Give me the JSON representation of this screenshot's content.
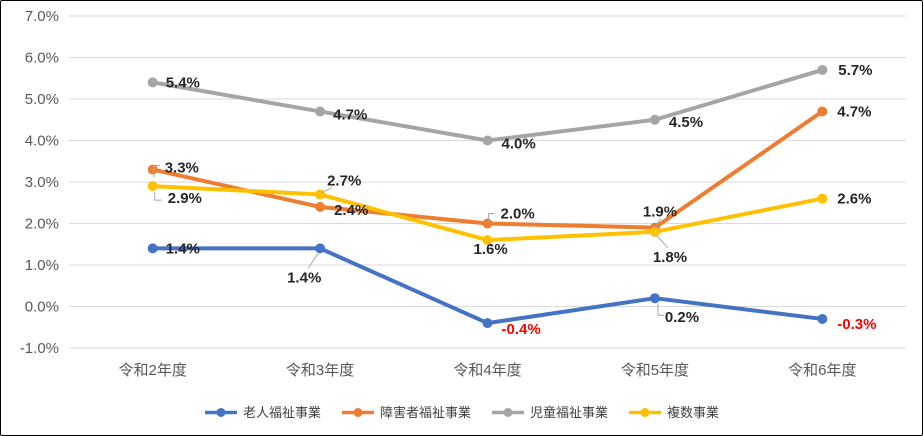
{
  "chart_data": {
    "type": "line",
    "title": "",
    "xlabel": "",
    "ylabel": "",
    "categories": [
      "令和2年度",
      "令和3年度",
      "令和4年度",
      "令和5年度",
      "令和6年度"
    ],
    "series": [
      {
        "name": "老人福祉事業",
        "color": "#4472C4",
        "values": [
          1.4,
          1.4,
          -0.4,
          0.2,
          -0.3
        ],
        "point_labels": [
          "1.4%",
          "1.4%",
          "-0.4%",
          "0.2%",
          "-0.3%"
        ]
      },
      {
        "name": "障害者福祉事業",
        "color": "#ED7D31",
        "values": [
          3.3,
          2.4,
          2.0,
          1.9,
          4.7
        ],
        "point_labels": [
          "3.3%",
          "2.4%",
          "2.0%",
          "1.9%",
          "4.7%"
        ]
      },
      {
        "name": "児童福祉事業",
        "color": "#A5A5A5",
        "values": [
          5.4,
          4.7,
          4.0,
          4.5,
          5.7
        ],
        "point_labels": [
          "5.4%",
          "4.7%",
          "4.0%",
          "4.5%",
          "5.7%"
        ]
      },
      {
        "name": "複数事業",
        "color": "#FFC000",
        "values": [
          2.9,
          2.7,
          1.6,
          1.8,
          2.6
        ],
        "point_labels": [
          "2.9%",
          "2.7%",
          "1.6%",
          "1.8%",
          "2.6%"
        ]
      }
    ],
    "ylim": [
      -1.0,
      7.0
    ],
    "ytick_step": 1.0,
    "ytick_labels": [
      "7.0%",
      "6.0%",
      "5.0%",
      "4.0%",
      "3.0%",
      "2.0%",
      "1.0%",
      "0.0%",
      "-1.0%"
    ],
    "grid": true,
    "legend_position": "bottom",
    "colors": {
      "data_label": "#262626",
      "negative_data_label": "#FF0000",
      "axis_text": "#595959",
      "gridline": "#D9D9D9",
      "callout": "#A6A6A6",
      "background": "#FFFFFF",
      "border": "#000000"
    }
  }
}
